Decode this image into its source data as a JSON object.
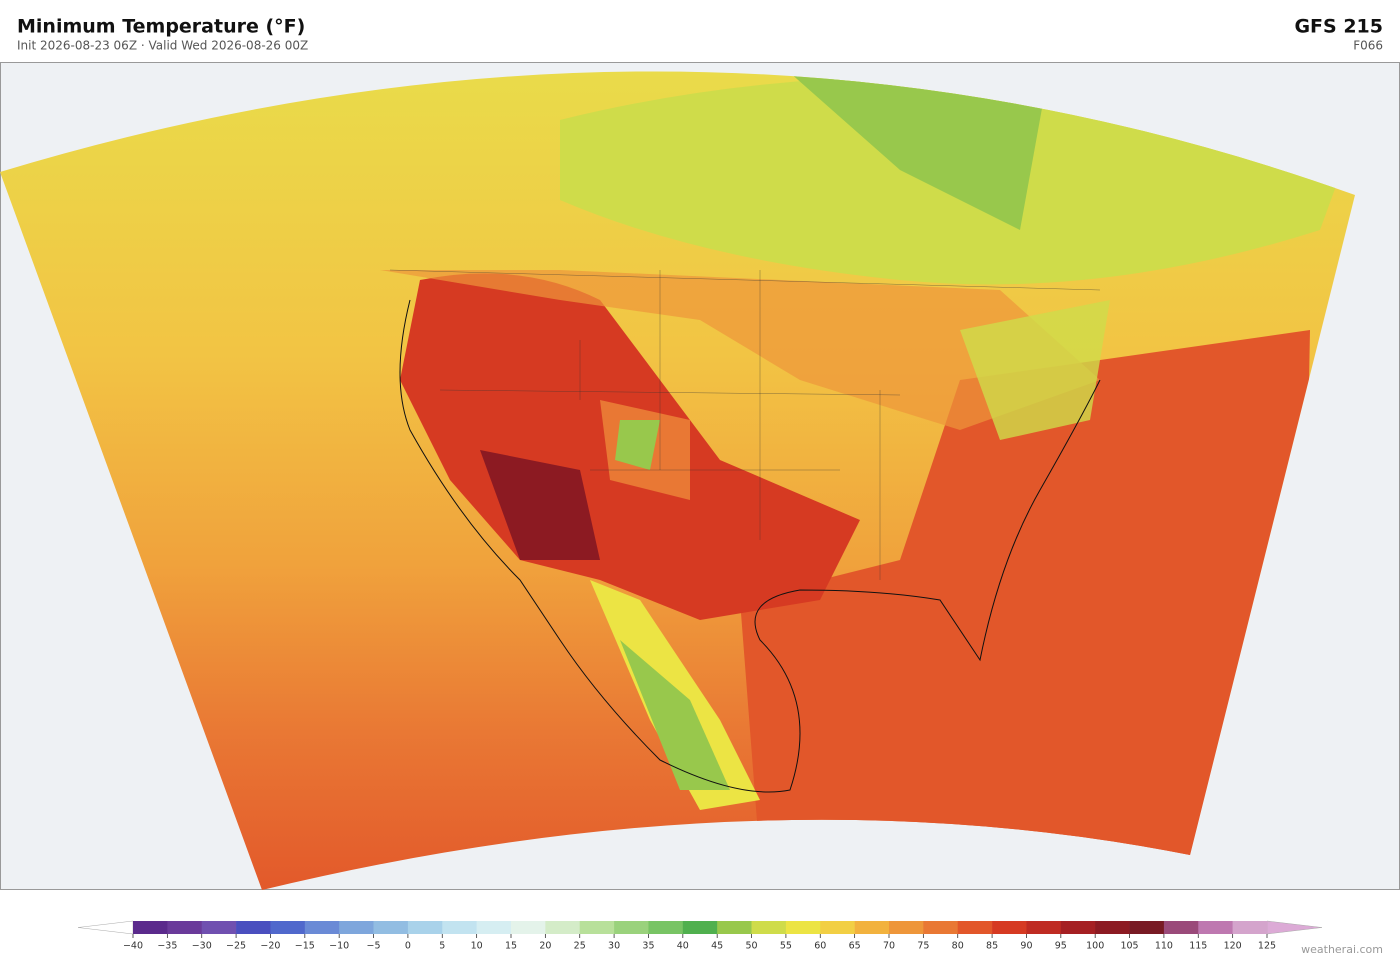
{
  "header": {
    "title": "Minimum Temperature  (°F)",
    "subtitle": "Init 2026-08-23 06Z  ·  Valid Wed 2026-08-26 00Z",
    "model": "GFS  215",
    "forecast": "F066"
  },
  "colorbar": {
    "lim": [
      -40,
      125
    ],
    "ticks": [
      {
        "value": -40,
        "label": "−40"
      },
      {
        "value": -35,
        "label": "−35"
      },
      {
        "value": -30,
        "label": "−30"
      },
      {
        "value": -25,
        "label": "−25"
      },
      {
        "value": -20,
        "label": "−20"
      },
      {
        "value": -15,
        "label": "−15"
      },
      {
        "value": -10,
        "label": "−10"
      },
      {
        "value": -5,
        "label": "−5"
      },
      0,
      5,
      10,
      15,
      20,
      25,
      30,
      35,
      40,
      45,
      50,
      55,
      60,
      65,
      70,
      75,
      80,
      85,
      90,
      95,
      100,
      105,
      110,
      115,
      120,
      125
    ],
    "colors": [
      "#5b2a8c",
      "#6a3a9a",
      "#7050b0",
      "#4a4fbf",
      "#5068cc",
      "#6a8ad6",
      "#7ea6dc",
      "#92bde2",
      "#a9d2ea",
      "#c2e3f0",
      "#d6eef2",
      "#e4f3ea",
      "#d4ecc8",
      "#b8e09a",
      "#9ad27c",
      "#78c464",
      "#50b04e",
      "#98c84c",
      "#cfdc4a",
      "#ece444",
      "#f2cf44",
      "#f2b23e",
      "#ee963a",
      "#e97834",
      "#e2572a",
      "#d63a22",
      "#bf2b22",
      "#a51f22",
      "#8c1a22",
      "#781a24",
      "#9a4a7a",
      "#be78b0",
      "#d4a4cc"
    ],
    "under_color": "#ffffff",
    "over_color": "#dcaad6"
  },
  "footer": {
    "credit": "weatherai.com"
  }
}
